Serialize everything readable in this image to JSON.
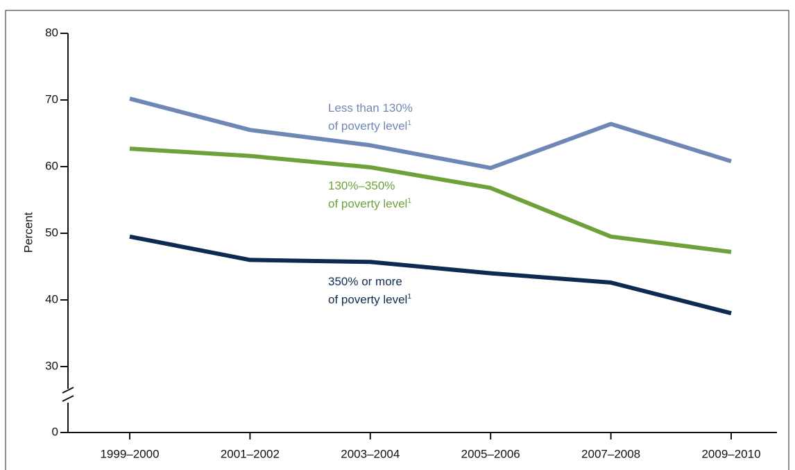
{
  "chart_data": {
    "type": "line",
    "y_label": "Percent",
    "categories": [
      "1999–2000",
      "2001–2002",
      "2003–2004",
      "2005–2006",
      "2007–2008",
      "2009–2010"
    ],
    "series": [
      {
        "name_lines": [
          "Less than 130%",
          "of poverty level"
        ],
        "footnote_mark": "1",
        "color": "#6f87b5",
        "values": [
          70.2,
          65.5,
          63.2,
          59.8,
          66.4,
          60.8
        ]
      },
      {
        "name_lines": [
          "130%–350%",
          "of poverty level"
        ],
        "footnote_mark": "1",
        "color": "#6ea13a",
        "values": [
          62.7,
          61.6,
          59.9,
          56.8,
          49.5,
          47.2
        ]
      },
      {
        "name_lines": [
          "350% or more",
          "of poverty level"
        ],
        "footnote_mark": "1",
        "color": "#0f2a50",
        "values": [
          49.5,
          46.0,
          45.7,
          44.0,
          42.6,
          38.0
        ]
      }
    ],
    "ylim": [
      0,
      80
    ],
    "axis_break": [
      0,
      30
    ],
    "yticks": [
      0,
      30,
      40,
      50,
      60,
      70,
      80
    ]
  }
}
